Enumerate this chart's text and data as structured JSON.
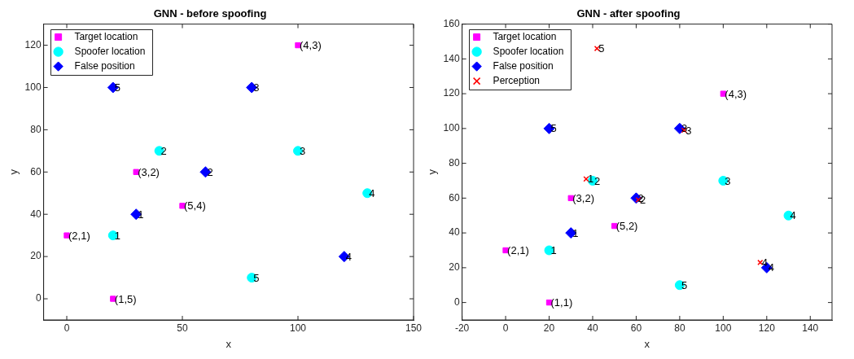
{
  "chart_data": [
    {
      "type": "scatter",
      "title": "GNN - before spoofing",
      "xlabel": "x",
      "ylabel": "y",
      "xlim": [
        -10,
        150
      ],
      "ylim": [
        -10,
        130
      ],
      "xticks": [
        0,
        50,
        100,
        150
      ],
      "yticks": [
        0,
        20,
        40,
        60,
        80,
        100,
        120
      ],
      "grid": false,
      "legend": "top left",
      "series": [
        {
          "name": "Target location",
          "color": "#ff00ff",
          "marker": "square",
          "x": [
            0,
            20,
            30,
            50,
            100
          ],
          "values": [
            30,
            0,
            60,
            44,
            120
          ]
        },
        {
          "name": "Spoofer location",
          "color": "#00ffff",
          "marker": "circle",
          "x": [
            20,
            40,
            100,
            130,
            80
          ],
          "values": [
            30,
            70,
            70,
            50,
            10
          ]
        },
        {
          "name": "False position",
          "color": "#0000ff",
          "marker": "diamond",
          "x": [
            30,
            60,
            80,
            120,
            20
          ],
          "values": [
            40,
            60,
            100,
            20,
            100
          ]
        }
      ],
      "annotations": [
        {
          "text": "(2,1)",
          "x": 0,
          "y": 30
        },
        {
          "text": "(1,5)",
          "x": 20,
          "y": 0
        },
        {
          "text": "(3,2)",
          "x": 30,
          "y": 60
        },
        {
          "text": "(5,4)",
          "x": 50,
          "y": 44
        },
        {
          "text": "(4,3)",
          "x": 100,
          "y": 120
        },
        {
          "text": "1",
          "x": 20,
          "y": 30
        },
        {
          "text": "2",
          "x": 40,
          "y": 70
        },
        {
          "text": "3",
          "x": 100,
          "y": 70
        },
        {
          "text": "4",
          "x": 130,
          "y": 50
        },
        {
          "text": "5",
          "x": 80,
          "y": 10
        },
        {
          "text": "1",
          "x": 30,
          "y": 40
        },
        {
          "text": "2",
          "x": 60,
          "y": 60
        },
        {
          "text": "3",
          "x": 80,
          "y": 100
        },
        {
          "text": "4",
          "x": 120,
          "y": 20
        },
        {
          "text": "5",
          "x": 20,
          "y": 100
        }
      ]
    },
    {
      "type": "scatter",
      "title": "GNN - after spoofing",
      "xlabel": "x",
      "ylabel": "y",
      "xlim": [
        -20,
        150
      ],
      "ylim": [
        -10,
        160
      ],
      "xticks": [
        -20,
        0,
        20,
        40,
        60,
        80,
        100,
        120,
        140
      ],
      "yticks": [
        0,
        20,
        40,
        60,
        80,
        100,
        120,
        140,
        160
      ],
      "grid": false,
      "legend": "top left",
      "series": [
        {
          "name": "Target location",
          "color": "#ff00ff",
          "marker": "square",
          "x": [
            0,
            20,
            30,
            50,
            100
          ],
          "values": [
            30,
            0,
            60,
            44,
            120
          ]
        },
        {
          "name": "Spoofer location",
          "color": "#00ffff",
          "marker": "circle",
          "x": [
            20,
            40,
            100,
            130,
            80
          ],
          "values": [
            30,
            70,
            70,
            50,
            10
          ]
        },
        {
          "name": "False position",
          "color": "#0000ff",
          "marker": "diamond",
          "x": [
            30,
            60,
            80,
            120,
            20
          ],
          "values": [
            40,
            60,
            100,
            20,
            100
          ]
        },
        {
          "name": "Perception",
          "color": "#ff0000",
          "marker": "cross",
          "x": [
            37,
            61,
            82,
            117,
            42
          ],
          "values": [
            71,
            59,
            99,
            23,
            146
          ]
        }
      ],
      "annotations": [
        {
          "text": "(2,1)",
          "x": 0,
          "y": 30
        },
        {
          "text": "(1,1)",
          "x": 20,
          "y": 0
        },
        {
          "text": "(3,2)",
          "x": 30,
          "y": 60
        },
        {
          "text": "(5,2)",
          "x": 50,
          "y": 44
        },
        {
          "text": "(4,3)",
          "x": 100,
          "y": 120
        },
        {
          "text": "1",
          "x": 20,
          "y": 30
        },
        {
          "text": "2",
          "x": 40,
          "y": 70
        },
        {
          "text": "3",
          "x": 100,
          "y": 70
        },
        {
          "text": "4",
          "x": 130,
          "y": 50
        },
        {
          "text": "5",
          "x": 80,
          "y": 10
        },
        {
          "text": "1",
          "x": 30,
          "y": 40
        },
        {
          "text": "2",
          "x": 60,
          "y": 60
        },
        {
          "text": "3",
          "x": 80,
          "y": 100
        },
        {
          "text": "4",
          "x": 120,
          "y": 20
        },
        {
          "text": "5",
          "x": 20,
          "y": 100
        },
        {
          "text": "1",
          "x": 37,
          "y": 71
        },
        {
          "text": "2",
          "x": 61,
          "y": 59
        },
        {
          "text": "3",
          "x": 82,
          "y": 99
        },
        {
          "text": "4",
          "x": 117,
          "y": 23
        },
        {
          "text": "5",
          "x": 42,
          "y": 146
        }
      ]
    }
  ]
}
